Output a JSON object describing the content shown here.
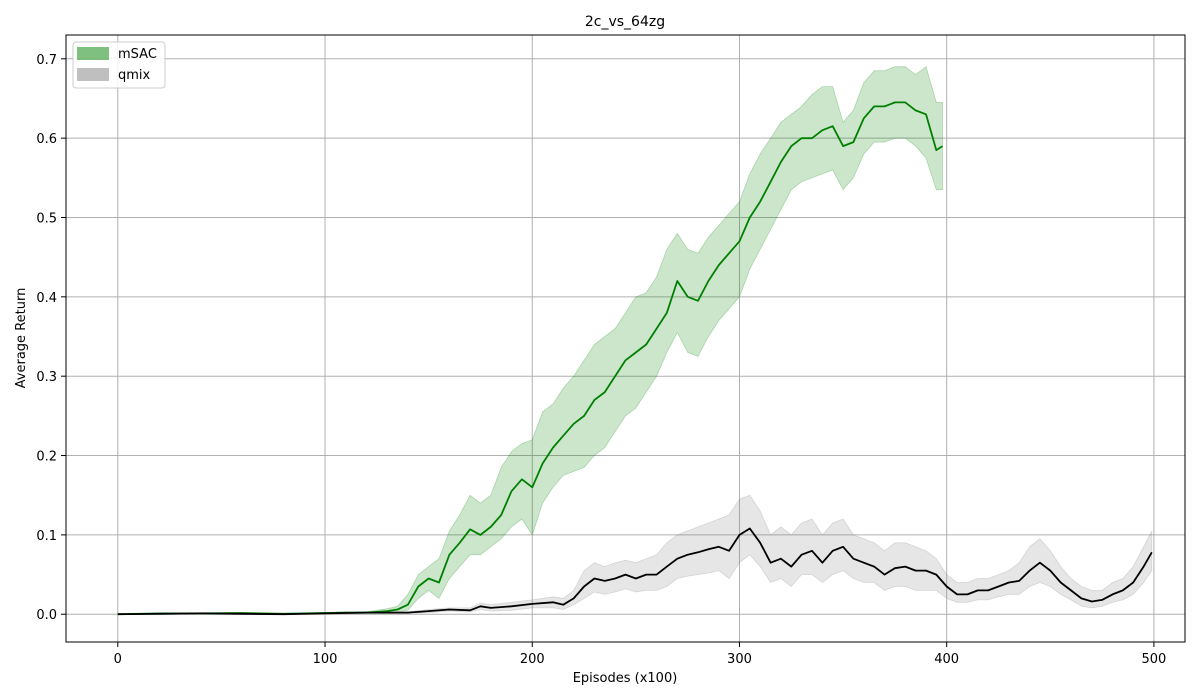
{
  "chart_data": {
    "type": "line",
    "title": "2c_vs_64zg",
    "xlabel": "Episodes (x100)",
    "ylabel": "Average Return",
    "xlim": [
      -25,
      515
    ],
    "ylim": [
      -0.035,
      0.73
    ],
    "xticks": [
      0,
      100,
      200,
      300,
      400,
      500
    ],
    "yticks": [
      0.0,
      0.1,
      0.2,
      0.3,
      0.4,
      0.5,
      0.6,
      0.7
    ],
    "xtick_labels": [
      "0",
      "100",
      "200",
      "300",
      "400",
      "500"
    ],
    "ytick_labels": [
      "0.0",
      "0.1",
      "0.2",
      "0.3",
      "0.4",
      "0.5",
      "0.6",
      "0.7"
    ],
    "grid": true,
    "legend_position": "top-left",
    "series": [
      {
        "name": "mSAC",
        "line_color": "#008000",
        "band_color": "#008000",
        "x": [
          0,
          20,
          40,
          60,
          80,
          100,
          110,
          120,
          130,
          135,
          140,
          145,
          150,
          155,
          160,
          165,
          170,
          175,
          180,
          185,
          190,
          195,
          200,
          205,
          210,
          215,
          220,
          225,
          230,
          235,
          240,
          245,
          250,
          255,
          260,
          265,
          270,
          275,
          280,
          285,
          290,
          295,
          300,
          305,
          310,
          315,
          320,
          325,
          330,
          335,
          340,
          345,
          350,
          355,
          360,
          365,
          370,
          375,
          380,
          385,
          390,
          395,
          398
        ],
        "mean": [
          0.0,
          0.001,
          0.001,
          0.0015,
          0.0005,
          0.0015,
          0.002,
          0.002,
          0.004,
          0.006,
          0.012,
          0.035,
          0.045,
          0.04,
          0.075,
          0.09,
          0.107,
          0.1,
          0.11,
          0.125,
          0.155,
          0.17,
          0.16,
          0.19,
          0.21,
          0.225,
          0.24,
          0.25,
          0.27,
          0.28,
          0.3,
          0.32,
          0.33,
          0.34,
          0.36,
          0.38,
          0.42,
          0.4,
          0.395,
          0.42,
          0.44,
          0.455,
          0.47,
          0.5,
          0.52,
          0.545,
          0.57,
          0.59,
          0.6,
          0.6,
          0.61,
          0.615,
          0.59,
          0.595,
          0.625,
          0.64,
          0.64,
          0.645,
          0.645,
          0.635,
          0.63,
          0.585,
          0.59
        ],
        "upper": [
          0.0,
          0.001,
          0.0015,
          0.002,
          0.001,
          0.002,
          0.003,
          0.003,
          0.007,
          0.01,
          0.025,
          0.05,
          0.06,
          0.07,
          0.105,
          0.125,
          0.15,
          0.14,
          0.15,
          0.185,
          0.205,
          0.215,
          0.22,
          0.255,
          0.265,
          0.285,
          0.3,
          0.32,
          0.34,
          0.35,
          0.36,
          0.38,
          0.4,
          0.405,
          0.425,
          0.46,
          0.48,
          0.46,
          0.455,
          0.475,
          0.49,
          0.505,
          0.52,
          0.555,
          0.58,
          0.6,
          0.62,
          0.63,
          0.64,
          0.655,
          0.665,
          0.665,
          0.62,
          0.635,
          0.67,
          0.685,
          0.685,
          0.69,
          0.69,
          0.68,
          0.69,
          0.645,
          0.645
        ],
        "lower": [
          0.0,
          0.0005,
          0.0005,
          0.001,
          0.0,
          0.001,
          0.001,
          0.001,
          0.002,
          0.003,
          0.005,
          0.02,
          0.03,
          0.02,
          0.045,
          0.06,
          0.075,
          0.075,
          0.085,
          0.095,
          0.11,
          0.12,
          0.1,
          0.14,
          0.16,
          0.175,
          0.18,
          0.185,
          0.2,
          0.21,
          0.23,
          0.25,
          0.26,
          0.28,
          0.3,
          0.33,
          0.355,
          0.33,
          0.325,
          0.35,
          0.37,
          0.385,
          0.4,
          0.435,
          0.46,
          0.485,
          0.51,
          0.535,
          0.545,
          0.55,
          0.555,
          0.56,
          0.535,
          0.55,
          0.58,
          0.595,
          0.595,
          0.6,
          0.6,
          0.59,
          0.575,
          0.535,
          0.535
        ]
      },
      {
        "name": "qmix",
        "line_color": "#000000",
        "band_color": "#808080",
        "x": [
          0,
          20,
          40,
          60,
          80,
          100,
          120,
          140,
          150,
          160,
          170,
          175,
          180,
          190,
          200,
          210,
          215,
          220,
          225,
          230,
          235,
          240,
          245,
          250,
          255,
          260,
          265,
          270,
          275,
          280,
          285,
          290,
          295,
          300,
          305,
          310,
          315,
          320,
          325,
          330,
          335,
          340,
          345,
          350,
          355,
          360,
          365,
          370,
          375,
          380,
          385,
          390,
          395,
          400,
          405,
          410,
          415,
          420,
          425,
          430,
          435,
          440,
          445,
          450,
          455,
          460,
          465,
          470,
          475,
          480,
          485,
          490,
          495,
          499
        ],
        "mean": [
          0.0,
          0.0005,
          0.001,
          0.0005,
          0.0,
          0.001,
          0.002,
          0.002,
          0.004,
          0.006,
          0.005,
          0.01,
          0.008,
          0.01,
          0.013,
          0.015,
          0.012,
          0.02,
          0.035,
          0.045,
          0.042,
          0.045,
          0.05,
          0.045,
          0.05,
          0.05,
          0.06,
          0.07,
          0.075,
          0.078,
          0.082,
          0.085,
          0.08,
          0.1,
          0.108,
          0.09,
          0.065,
          0.07,
          0.06,
          0.075,
          0.08,
          0.065,
          0.08,
          0.085,
          0.07,
          0.065,
          0.06,
          0.05,
          0.058,
          0.06,
          0.055,
          0.055,
          0.05,
          0.035,
          0.025,
          0.025,
          0.03,
          0.03,
          0.035,
          0.04,
          0.042,
          0.055,
          0.065,
          0.055,
          0.04,
          0.03,
          0.02,
          0.016,
          0.018,
          0.025,
          0.03,
          0.04,
          0.06,
          0.078
        ],
        "upper": [
          0.0,
          0.001,
          0.002,
          0.001,
          0.0005,
          0.002,
          0.003,
          0.003,
          0.006,
          0.008,
          0.008,
          0.014,
          0.012,
          0.015,
          0.018,
          0.022,
          0.02,
          0.03,
          0.055,
          0.065,
          0.06,
          0.065,
          0.068,
          0.065,
          0.07,
          0.075,
          0.09,
          0.1,
          0.105,
          0.11,
          0.115,
          0.12,
          0.125,
          0.145,
          0.15,
          0.13,
          0.1,
          0.11,
          0.1,
          0.115,
          0.12,
          0.1,
          0.115,
          0.12,
          0.1,
          0.095,
          0.09,
          0.08,
          0.09,
          0.09,
          0.085,
          0.08,
          0.07,
          0.05,
          0.04,
          0.04,
          0.045,
          0.045,
          0.05,
          0.055,
          0.065,
          0.085,
          0.095,
          0.08,
          0.06,
          0.045,
          0.035,
          0.03,
          0.03,
          0.04,
          0.045,
          0.06,
          0.085,
          0.105
        ],
        "lower": [
          0.0,
          0.0,
          0.0005,
          0.0,
          0.0,
          0.0005,
          0.001,
          0.001,
          0.002,
          0.004,
          0.003,
          0.006,
          0.004,
          0.005,
          0.008,
          0.008,
          0.006,
          0.012,
          0.02,
          0.028,
          0.025,
          0.028,
          0.032,
          0.028,
          0.03,
          0.03,
          0.035,
          0.045,
          0.048,
          0.05,
          0.052,
          0.055,
          0.045,
          0.065,
          0.075,
          0.06,
          0.04,
          0.045,
          0.035,
          0.05,
          0.05,
          0.04,
          0.05,
          0.055,
          0.045,
          0.04,
          0.04,
          0.03,
          0.035,
          0.035,
          0.03,
          0.03,
          0.03,
          0.02,
          0.015,
          0.015,
          0.018,
          0.018,
          0.022,
          0.025,
          0.025,
          0.035,
          0.04,
          0.035,
          0.025,
          0.018,
          0.01,
          0.008,
          0.01,
          0.015,
          0.018,
          0.025,
          0.04,
          0.055
        ]
      }
    ]
  }
}
